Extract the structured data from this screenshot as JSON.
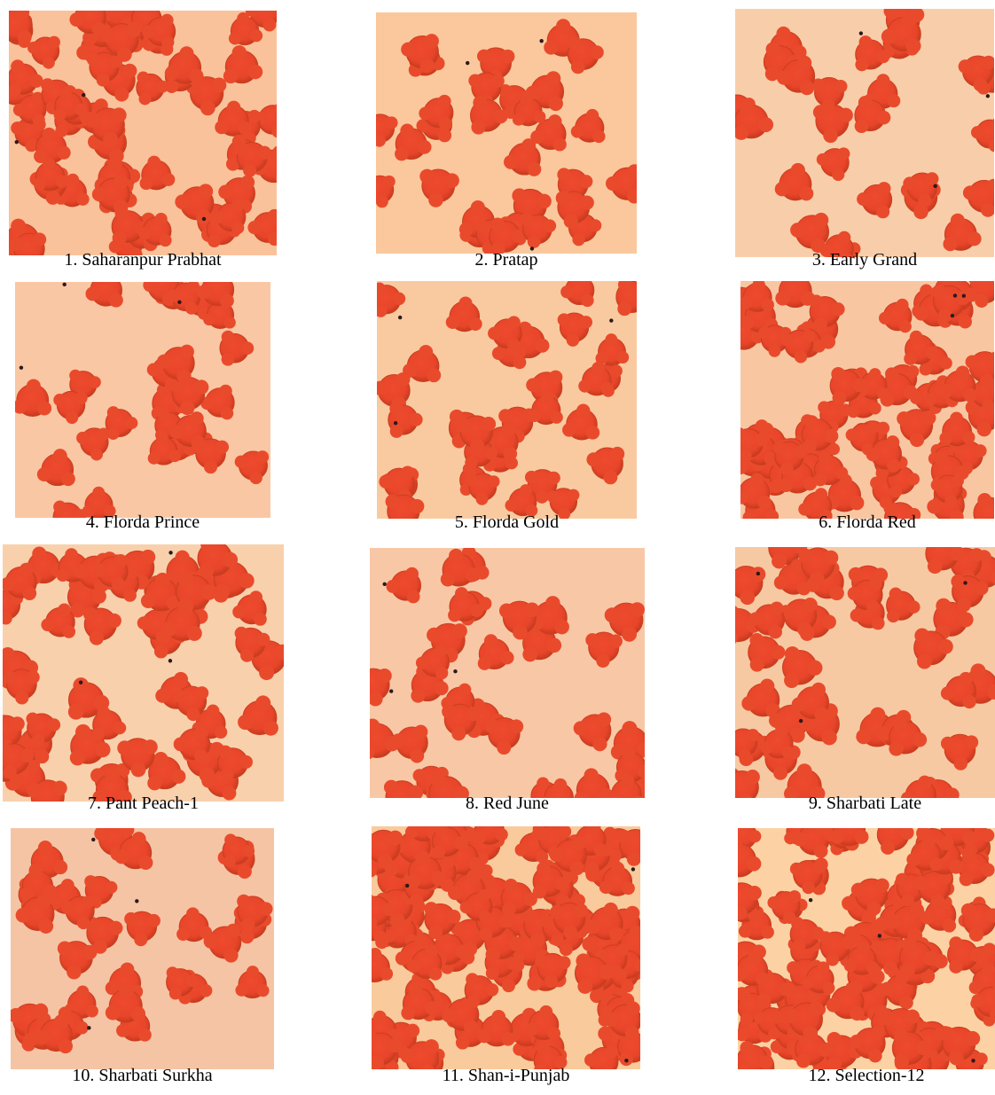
{
  "figure": {
    "panels": [
      {
        "caption": "1. Saharanpur Prabhat",
        "density": 60,
        "bg": "#f9c29a"
      },
      {
        "caption": "2. Pratap",
        "density": 30,
        "bg": "#fac89c"
      },
      {
        "caption": "3. Early Grand",
        "density": 26,
        "bg": "#f8ceaa"
      },
      {
        "caption": "4. Florda Prince",
        "density": 28,
        "bg": "#f9c7a4"
      },
      {
        "caption": "5. Florda Gold",
        "density": 32,
        "bg": "#f9caa0"
      },
      {
        "caption": "6. Florda Red",
        "density": 70,
        "bg": "#f8c7a2"
      },
      {
        "caption": "7. Pant Peach-1",
        "density": 52,
        "bg": "#f9d0ac"
      },
      {
        "caption": "8. Red June",
        "density": 32,
        "bg": "#f8c8a6"
      },
      {
        "caption": "9. Sharbati Late",
        "density": 40,
        "bg": "#f7c9a3"
      },
      {
        "caption": "10. Sharbati Surkha",
        "density": 30,
        "bg": "#f5c4a5"
      },
      {
        "caption": "11. Shan-i-Punjab",
        "density": 110,
        "bg": "#f9ca9b"
      },
      {
        "caption": "12. Selection-12",
        "density": 95,
        "bg": "#fcd2a4"
      }
    ]
  }
}
